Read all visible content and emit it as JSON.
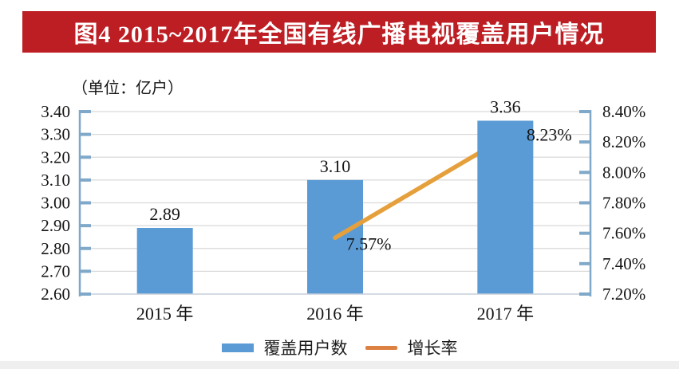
{
  "banner": {
    "title": "图4  2015~2017年全国有线广播电视覆盖用户情况",
    "bg_color": "#BD1E24",
    "text_color": "#FFFFFF"
  },
  "unit_label": "（单位：亿户）",
  "chart_data": {
    "type": "bar",
    "subtype": "bar+line combo, dual axis",
    "title": "图4 2015~2017年全国有线广播电视覆盖用户情况",
    "categories": [
      "2015 年",
      "2016 年",
      "2017 年"
    ],
    "series": [
      {
        "name": "覆盖用户数",
        "type": "bar",
        "axis": "left",
        "unit": "亿户",
        "values": [
          2.89,
          3.1,
          3.36
        ],
        "labels": [
          "2.89",
          "3.10",
          "3.36"
        ],
        "color": "#5B9BD5"
      },
      {
        "name": "增长率",
        "type": "line",
        "axis": "right",
        "unit": "%",
        "values": [
          null,
          7.57,
          8.23
        ],
        "labels": [
          null,
          "7.57%",
          "8.23%"
        ],
        "color": "#E5A03C"
      }
    ],
    "left_axis": {
      "min": 2.6,
      "max": 3.4,
      "ticks": [
        "3.40",
        "3.30",
        "3.20",
        "3.10",
        "3.00",
        "2.90",
        "2.80",
        "2.70",
        "2.60"
      ]
    },
    "right_axis": {
      "min": 7.2,
      "max": 8.4,
      "ticks": [
        "8.40%",
        "8.20%",
        "8.00%",
        "7.80%",
        "7.60%",
        "7.40%",
        "7.20%"
      ]
    },
    "grid": true,
    "legend_position": "bottom",
    "colors": {
      "axis_line": "#7FA8C9",
      "gridline": "#D9D9D9",
      "bottom_axis": "#C9D2DE",
      "text": "#141414"
    }
  },
  "legend": {
    "items": [
      {
        "label": "覆盖用户数",
        "color": "#5B9BD5",
        "shape": "bar"
      },
      {
        "label": "增长率",
        "color": "#DD8142",
        "shape": "line"
      }
    ]
  }
}
